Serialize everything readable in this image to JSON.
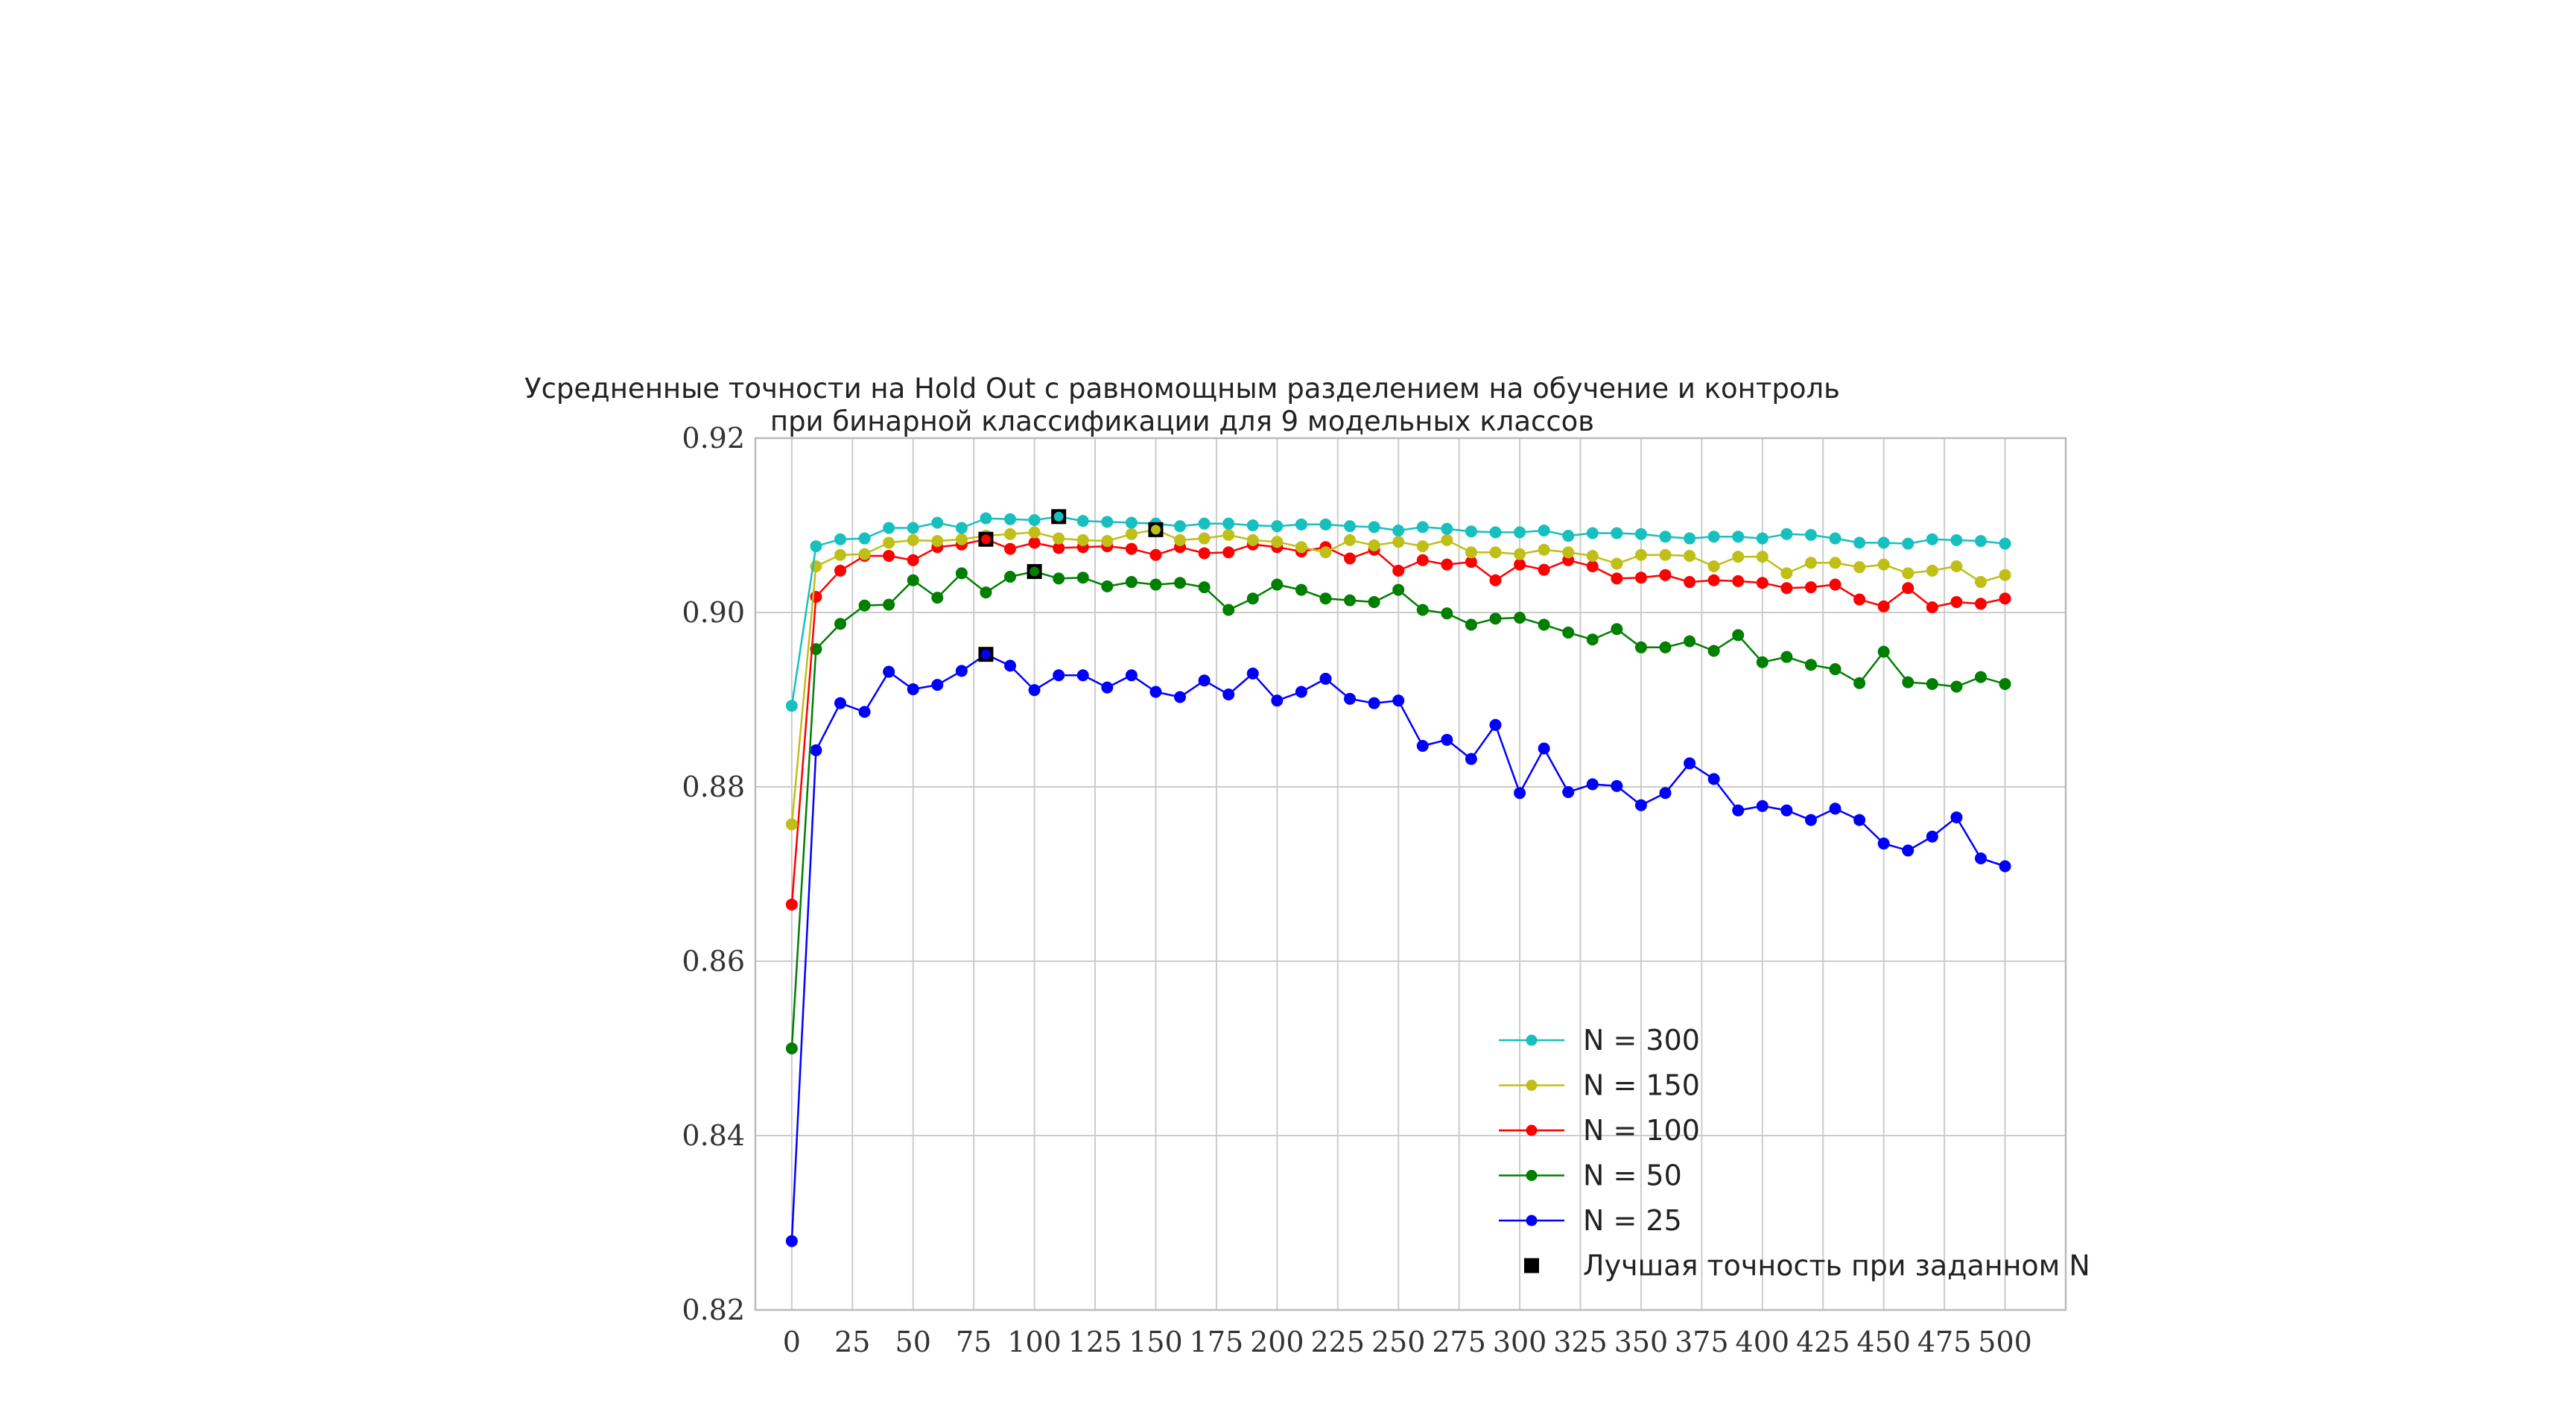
{
  "chart_data": {
    "type": "line",
    "title": "Усредненные точности на Hold Out с равномощным разделением на обучение и контроль",
    "subtitle": "при бинарной классификации для 9 модельных классов",
    "xlabel": "",
    "ylabel": "",
    "xlim": [
      -15,
      525
    ],
    "ylim": [
      0.82,
      0.92
    ],
    "grid": true,
    "legend_position": "lower-right",
    "x_ticks": [
      0,
      25,
      50,
      75,
      100,
      125,
      150,
      175,
      200,
      225,
      250,
      275,
      300,
      325,
      350,
      375,
      400,
      425,
      450,
      475,
      500
    ],
    "y_ticks": [
      0.82,
      0.84,
      0.86,
      0.88,
      0.9,
      0.92
    ],
    "x_tick_labels": [
      "0",
      "25",
      "50",
      "75",
      "100",
      "125",
      "150",
      "175",
      "200",
      "225",
      "250",
      "275",
      "300",
      "325",
      "350",
      "375",
      "400",
      "425",
      "450",
      "475",
      "500"
    ],
    "y_tick_labels": [
      "0.82",
      "0.84",
      "0.86",
      "0.88",
      "0.90",
      "0.92"
    ],
    "x": [
      0,
      10,
      20,
      30,
      40,
      50,
      60,
      70,
      80,
      90,
      100,
      110,
      120,
      130,
      140,
      150,
      160,
      170,
      180,
      190,
      200,
      210,
      220,
      230,
      240,
      250,
      260,
      270,
      280,
      290,
      300,
      310,
      320,
      330,
      340,
      350,
      360,
      370,
      380,
      390,
      400,
      410,
      420,
      430,
      440,
      450,
      460,
      470,
      480,
      490,
      500
    ],
    "series": [
      {
        "name": "N = 300",
        "color": "#17bfbf",
        "values": [
          0.8893,
          0.9076,
          0.9084,
          0.9085,
          0.9097,
          0.9097,
          0.9103,
          0.9097,
          0.9108,
          0.9107,
          0.9106,
          0.911,
          0.9105,
          0.9104,
          0.9103,
          0.9102,
          0.9099,
          0.9102,
          0.9102,
          0.91,
          0.9099,
          0.9101,
          0.9101,
          0.9099,
          0.9098,
          0.9094,
          0.9098,
          0.9096,
          0.9093,
          0.9092,
          0.9092,
          0.9094,
          0.9088,
          0.9091,
          0.9091,
          0.909,
          0.9087,
          0.9085,
          0.9087,
          0.9087,
          0.9085,
          0.909,
          0.9089,
          0.9085,
          0.908,
          0.908,
          0.9079,
          0.9084,
          0.9083,
          0.9082,
          0.9079
        ],
        "best": {
          "x": 110,
          "y": 0.911
        }
      },
      {
        "name": "N = 150",
        "color": "#bfbf17",
        "values": [
          0.8757,
          0.9053,
          0.9066,
          0.9067,
          0.908,
          0.9083,
          0.9082,
          0.9084,
          0.9088,
          0.909,
          0.9092,
          0.9085,
          0.9083,
          0.9082,
          0.909,
          0.9095,
          0.9083,
          0.9085,
          0.9089,
          0.9083,
          0.9081,
          0.9075,
          0.9069,
          0.9083,
          0.9077,
          0.9081,
          0.9076,
          0.9083,
          0.9069,
          0.9069,
          0.9067,
          0.9072,
          0.9069,
          0.9065,
          0.9056,
          0.9066,
          0.9066,
          0.9065,
          0.9053,
          0.9064,
          0.9064,
          0.9045,
          0.9057,
          0.9057,
          0.9052,
          0.9055,
          0.9045,
          0.9048,
          0.9053,
          0.9035,
          0.9043
        ],
        "best": {
          "x": 150,
          "y": 0.9095
        }
      },
      {
        "name": "N = 100",
        "color": "#ff0000",
        "values": [
          0.8665,
          0.9018,
          0.9048,
          0.9065,
          0.9065,
          0.906,
          0.9075,
          0.9078,
          0.9084,
          0.9073,
          0.908,
          0.9074,
          0.9075,
          0.9076,
          0.9073,
          0.9066,
          0.9075,
          0.9068,
          0.9069,
          0.9078,
          0.9075,
          0.907,
          0.9075,
          0.9062,
          0.9072,
          0.9048,
          0.906,
          0.9055,
          0.9058,
          0.9037,
          0.9055,
          0.9049,
          0.906,
          0.9053,
          0.9039,
          0.904,
          0.9043,
          0.9035,
          0.9037,
          0.9036,
          0.9034,
          0.9028,
          0.9029,
          0.9032,
          0.9015,
          0.9007,
          0.9028,
          0.9006,
          0.9012,
          0.901,
          0.9016
        ],
        "best": {
          "x": 80,
          "y": 0.9084
        }
      },
      {
        "name": "N = 50",
        "color": "#007f00",
        "values": [
          0.85,
          0.8958,
          0.8987,
          0.9008,
          0.9009,
          0.9037,
          0.9017,
          0.9045,
          0.9023,
          0.9041,
          0.9047,
          0.9039,
          0.904,
          0.903,
          0.9035,
          0.9032,
          0.9034,
          0.9029,
          0.9003,
          0.9016,
          0.9032,
          0.9026,
          0.9016,
          0.9014,
          0.9012,
          0.9026,
          0.9003,
          0.8999,
          0.8986,
          0.8993,
          0.8994,
          0.8986,
          0.8977,
          0.8969,
          0.8981,
          0.896,
          0.896,
          0.8967,
          0.8956,
          0.8974,
          0.8943,
          0.8949,
          0.894,
          0.8935,
          0.8919,
          0.8955,
          0.892,
          0.8918,
          0.8915,
          0.8926,
          0.8918
        ],
        "best": {
          "x": 100,
          "y": 0.9047
        }
      },
      {
        "name": "N = 25",
        "color": "#0000ff",
        "values": [
          0.8279,
          0.8842,
          0.8896,
          0.8886,
          0.8932,
          0.8912,
          0.8917,
          0.8933,
          0.8952,
          0.8939,
          0.8911,
          0.8928,
          0.8928,
          0.8914,
          0.8928,
          0.8909,
          0.8903,
          0.8922,
          0.8906,
          0.893,
          0.8899,
          0.8909,
          0.8924,
          0.8901,
          0.8896,
          0.8899,
          0.8847,
          0.8854,
          0.8832,
          0.8871,
          0.8793,
          0.8844,
          0.8794,
          0.8803,
          0.8801,
          0.8779,
          0.8793,
          0.8827,
          0.8809,
          0.8773,
          0.8778,
          0.8773,
          0.8762,
          0.8775,
          0.8762,
          0.8735,
          0.8727,
          0.8743,
          0.8765,
          0.8718,
          0.8709
        ],
        "best": {
          "x": 80,
          "y": 0.8952
        }
      }
    ],
    "best_marker_label": "Лучшая точность при заданном N"
  }
}
